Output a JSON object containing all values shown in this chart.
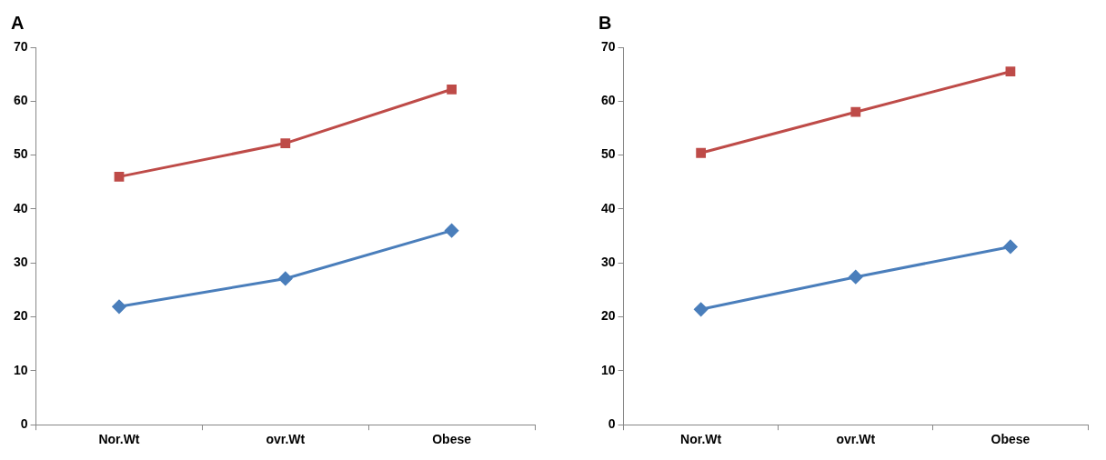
{
  "chart_data": [
    {
      "type": "line",
      "title": "A",
      "categories": [
        "Nor.Wt",
        "ovr.Wt",
        "Obese"
      ],
      "ylim": [
        0,
        70
      ],
      "yticks": [
        0,
        10,
        20,
        30,
        40,
        50,
        60,
        70
      ],
      "grid": false,
      "legend": false,
      "series": [
        {
          "color": "#4a7ebb",
          "marker": "diamond",
          "values": [
            21.9,
            27.1,
            36.0
          ]
        },
        {
          "color": "#be4b48",
          "marker": "square",
          "values": [
            46.0,
            52.2,
            62.2
          ]
        }
      ]
    },
    {
      "type": "line",
      "title": "B",
      "categories": [
        "Nor.Wt",
        "ovr.Wt",
        "Obese"
      ],
      "ylim": [
        0,
        70
      ],
      "yticks": [
        0,
        10,
        20,
        30,
        40,
        50,
        60,
        70
      ],
      "grid": false,
      "legend": false,
      "series": [
        {
          "color": "#4a7ebb",
          "marker": "diamond",
          "values": [
            21.4,
            27.4,
            33.0
          ]
        },
        {
          "color": "#be4b48",
          "marker": "square",
          "values": [
            50.4,
            58.0,
            65.5
          ]
        }
      ]
    }
  ]
}
